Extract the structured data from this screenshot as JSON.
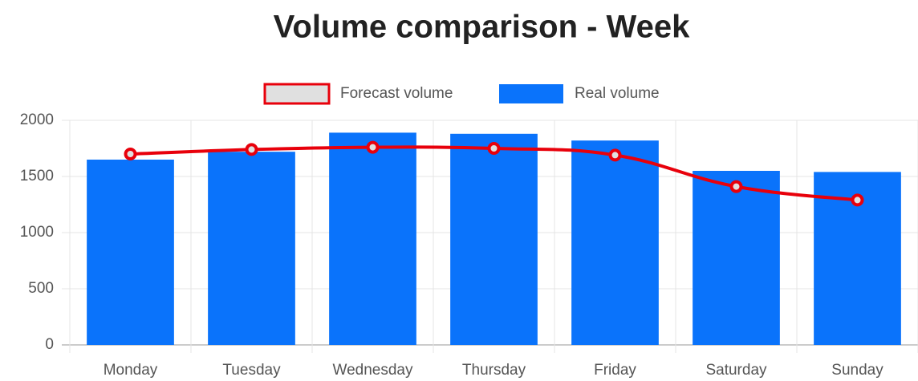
{
  "chart_data": {
    "type": "bar+line",
    "title": "Volume comparison - Week",
    "categories": [
      "Monday",
      "Tuesday",
      "Wednesday",
      "Thursday",
      "Friday",
      "Saturday",
      "Sunday"
    ],
    "series": [
      {
        "name": "Forecast volume",
        "type": "line",
        "color": "#e8000b",
        "fill": "#e0e0e0",
        "values": [
          1700,
          1740,
          1760,
          1750,
          1690,
          1410,
          1290
        ]
      },
      {
        "name": "Real volume",
        "type": "bar",
        "color": "#0a73fb",
        "values": [
          1650,
          1720,
          1890,
          1880,
          1820,
          1550,
          1540
        ]
      }
    ],
    "ylim": [
      0,
      2000
    ],
    "yticks": [
      0,
      500,
      1000,
      1500,
      2000
    ],
    "grid": true,
    "legend": "top"
  }
}
